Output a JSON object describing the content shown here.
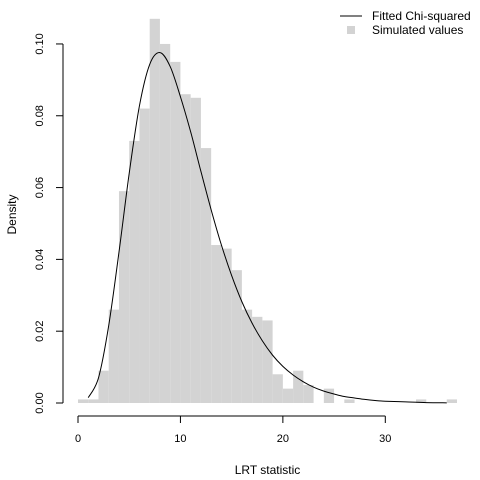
{
  "chart_data": {
    "type": "histogram",
    "xlabel": "LRT statistic",
    "ylabel": "Density",
    "xlim": [
      0,
      37
    ],
    "ylim": [
      0,
      0.105
    ],
    "x_ticks": [
      "0",
      "10",
      "20",
      "30"
    ],
    "y_ticks": [
      "0.00",
      "0.02",
      "0.04",
      "0.06",
      "0.08",
      "0.10"
    ],
    "grid": false,
    "legend_position": "top-right",
    "colors": {
      "bars": "#d3d3d3",
      "curve": "#000000"
    },
    "series": [
      {
        "name": "Simulated values",
        "kind": "histogram",
        "bin_width": 1,
        "bins": [
          {
            "start": 0,
            "end": 1,
            "density": 0.001
          },
          {
            "start": 1,
            "end": 2,
            "density": 0.001
          },
          {
            "start": 2,
            "end": 3,
            "density": 0.009
          },
          {
            "start": 3,
            "end": 4,
            "density": 0.026
          },
          {
            "start": 4,
            "end": 5,
            "density": 0.059
          },
          {
            "start": 5,
            "end": 6,
            "density": 0.073
          },
          {
            "start": 6,
            "end": 7,
            "density": 0.082
          },
          {
            "start": 7,
            "end": 8,
            "density": 0.107
          },
          {
            "start": 8,
            "end": 9,
            "density": 0.1
          },
          {
            "start": 9,
            "end": 10,
            "density": 0.095
          },
          {
            "start": 10,
            "end": 11,
            "density": 0.086
          },
          {
            "start": 11,
            "end": 12,
            "density": 0.085
          },
          {
            "start": 12,
            "end": 13,
            "density": 0.071
          },
          {
            "start": 13,
            "end": 14,
            "density": 0.044
          },
          {
            "start": 14,
            "end": 15,
            "density": 0.043
          },
          {
            "start": 15,
            "end": 16,
            "density": 0.037
          },
          {
            "start": 16,
            "end": 17,
            "density": 0.026
          },
          {
            "start": 17,
            "end": 18,
            "density": 0.024
          },
          {
            "start": 18,
            "end": 19,
            "density": 0.023
          },
          {
            "start": 19,
            "end": 20,
            "density": 0.008
          },
          {
            "start": 20,
            "end": 21,
            "density": 0.004
          },
          {
            "start": 21,
            "end": 22,
            "density": 0.009
          },
          {
            "start": 22,
            "end": 23,
            "density": 0.005
          },
          {
            "start": 23,
            "end": 24,
            "density": 0
          },
          {
            "start": 24,
            "end": 25,
            "density": 0.004
          },
          {
            "start": 25,
            "end": 26,
            "density": 0
          },
          {
            "start": 26,
            "end": 27,
            "density": 0.001
          },
          {
            "start": 27,
            "end": 28,
            "density": 0
          },
          {
            "start": 28,
            "end": 29,
            "density": 0
          },
          {
            "start": 29,
            "end": 30,
            "density": 0
          },
          {
            "start": 30,
            "end": 31,
            "density": 0
          },
          {
            "start": 31,
            "end": 32,
            "density": 0
          },
          {
            "start": 32,
            "end": 33,
            "density": 0
          },
          {
            "start": 33,
            "end": 34,
            "density": 0.001
          },
          {
            "start": 34,
            "end": 35,
            "density": 0
          },
          {
            "start": 35,
            "end": 36,
            "density": 0
          },
          {
            "start": 36,
            "end": 37,
            "density": 0.001
          }
        ]
      },
      {
        "name": "Fitted Chi-squared",
        "kind": "line",
        "x": [
          1,
          2,
          3,
          4,
          5,
          6,
          7,
          8,
          9,
          10,
          11,
          12,
          13,
          14,
          15,
          16,
          17,
          18,
          19,
          20,
          21,
          22,
          23,
          24,
          25,
          26,
          27,
          28,
          29,
          30,
          32,
          34,
          36
        ],
        "y": [
          0.0015,
          0.007,
          0.0216,
          0.042,
          0.064,
          0.0828,
          0.0943,
          0.0976,
          0.0937,
          0.0853,
          0.0755,
          0.0645,
          0.0538,
          0.044,
          0.0355,
          0.0282,
          0.0222,
          0.0173,
          0.0133,
          0.0102,
          0.0078,
          0.0059,
          0.0044,
          0.0033,
          0.0025,
          0.0018,
          0.0014,
          0.001,
          0.0007,
          0.0005,
          0.0003,
          0.0001,
          5e-05
        ]
      }
    ],
    "legend": {
      "line_label": "Fitted Chi-squared",
      "bar_label": "Simulated values"
    }
  }
}
